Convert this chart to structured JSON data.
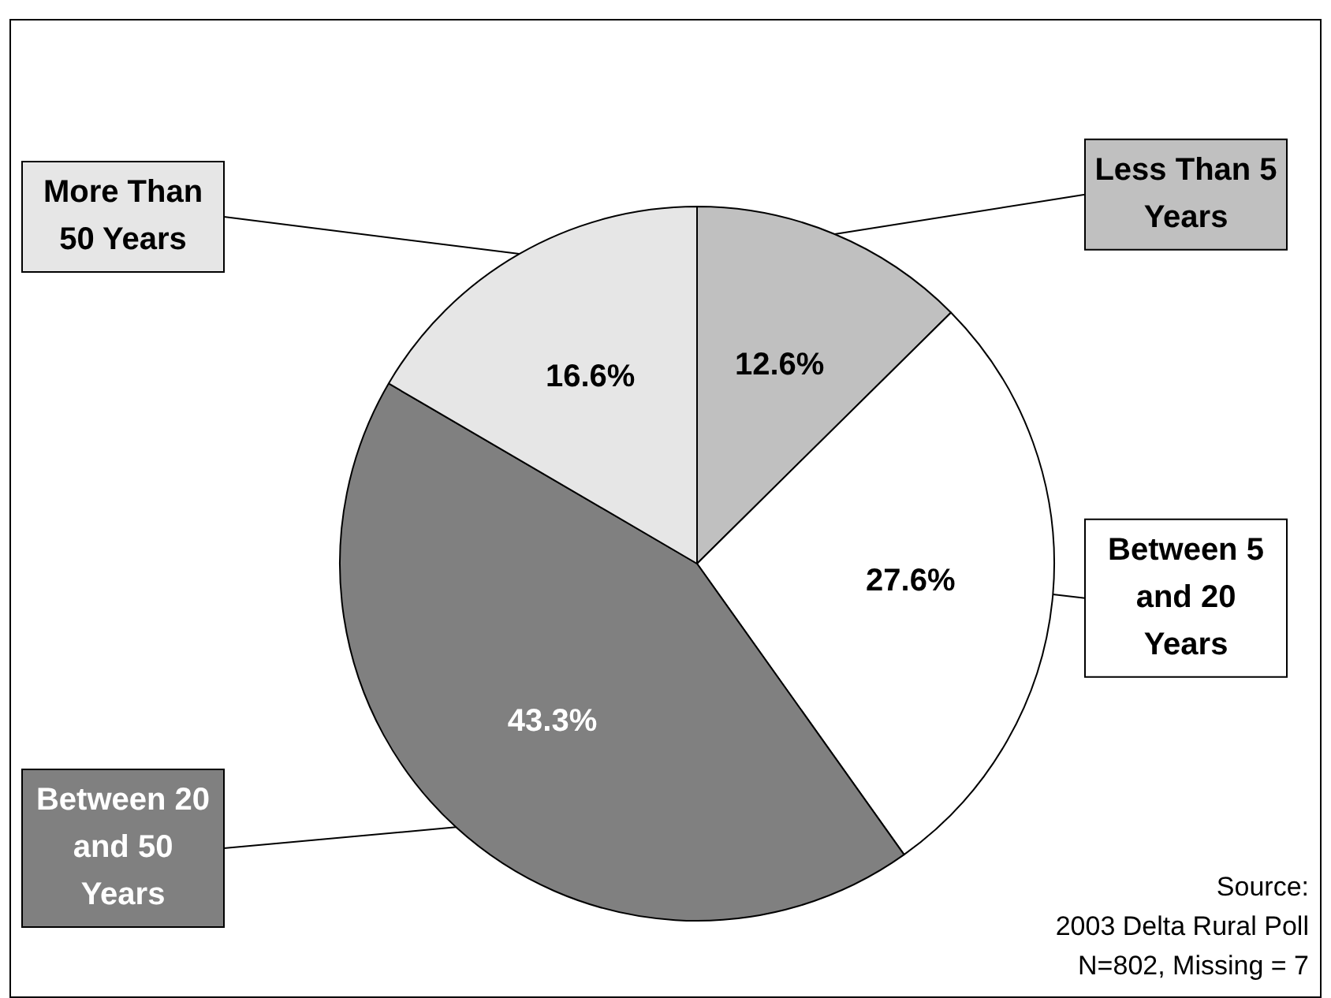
{
  "chart_data": {
    "type": "pie",
    "categories": [
      "Less Than 5 Years",
      "Between 5 and 20 Years",
      "Between 20 and 50 Years",
      "More Than 50 Years"
    ],
    "values": [
      12.6,
      27.6,
      43.3,
      16.6
    ],
    "colors": [
      "#c0c0c0",
      "#ffffff",
      "#808080",
      "#e6e6e6"
    ],
    "value_labels": [
      "12.6%",
      "27.6%",
      "43.3%",
      "16.6%"
    ],
    "legend": false,
    "annotations": [
      "Source:",
      "2003 Delta Rural Poll",
      "N=802, Missing = 7"
    ]
  }
}
